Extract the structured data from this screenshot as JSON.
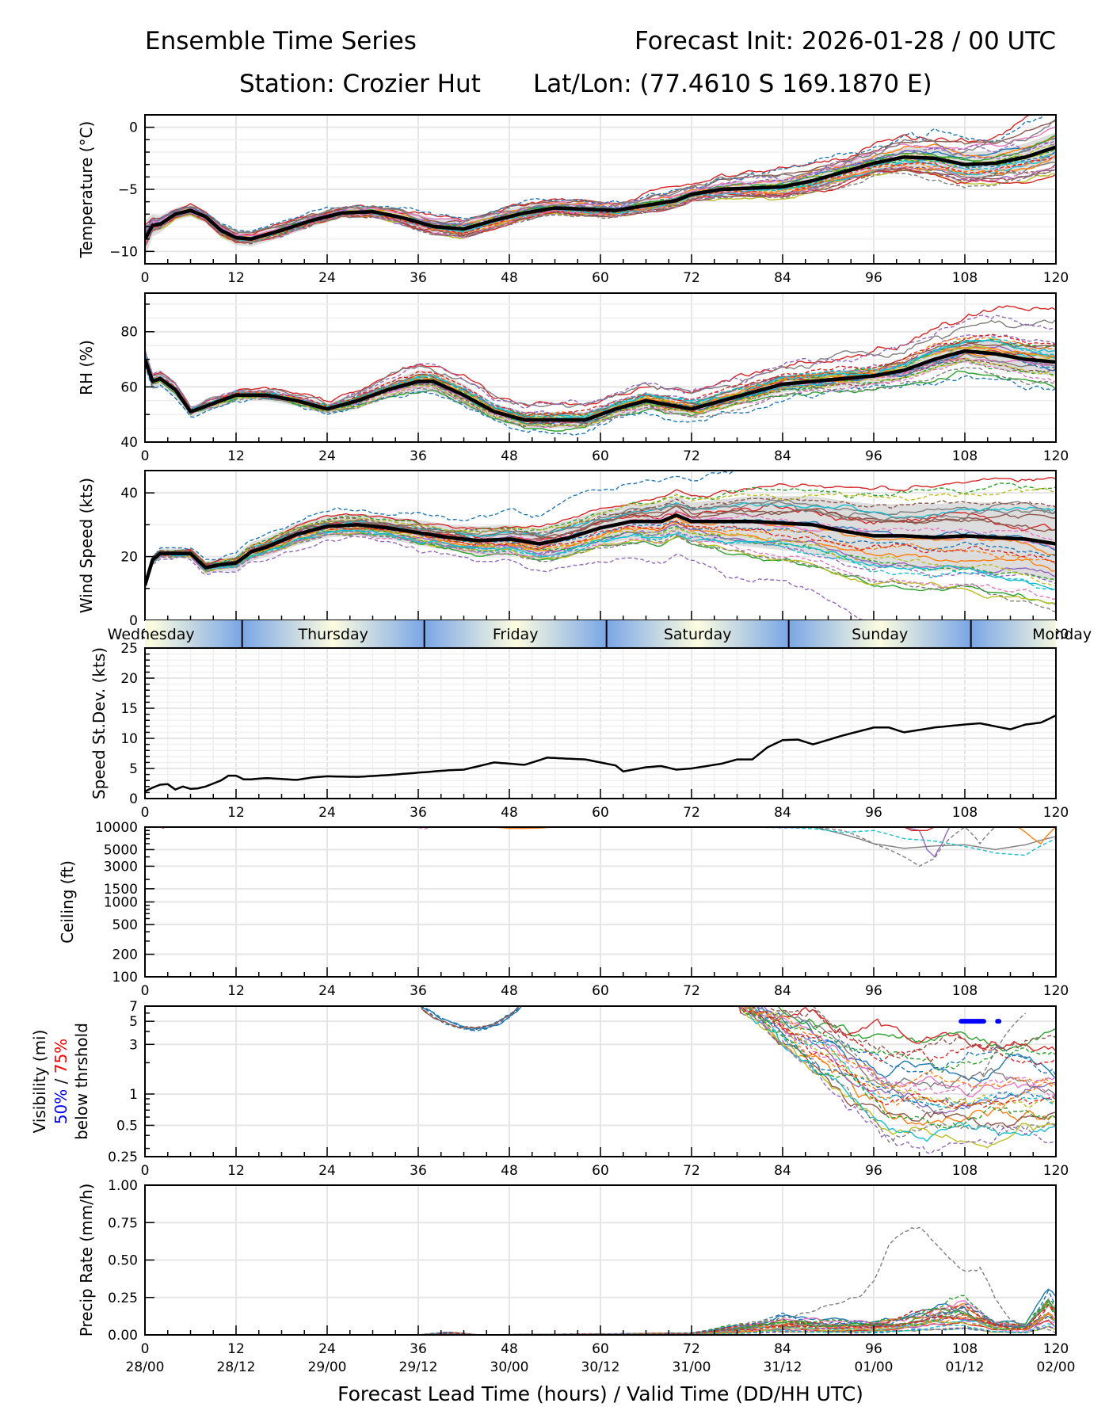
{
  "header": {
    "title_left": "Ensemble Time Series",
    "title_right": "Forecast Init: 2026-01-28 / 00 UTC",
    "station": "Station: Crozier Hut",
    "latlon": "Lat/Lon: (77.4610 S 169.1870 E)"
  },
  "x_axis": {
    "label": "Forecast Lead Time (hours) / Valid Time (DD/HH UTC)",
    "lead_ticks": [
      0,
      12,
      24,
      36,
      48,
      60,
      72,
      84,
      96,
      108,
      120
    ],
    "valid_labels": [
      "28/00",
      "28/12",
      "29/00",
      "29/12",
      "30/00",
      "30/12",
      "31/00",
      "31/12",
      "01/00",
      "01/12",
      "02/00"
    ],
    "range": [
      0,
      120
    ]
  },
  "day_band": {
    "days": [
      "Wednesday",
      "Thursday",
      "Friday",
      "Saturday",
      "Sunday",
      "Monday"
    ],
    "dividers_hours": [
      12.8,
      36.8,
      60.8,
      84.8,
      108.8
    ],
    "colors": {
      "midday": "#fdfde0",
      "midnight": "#7aa6e6"
    }
  },
  "colors": {
    "members": [
      "#1f77b4",
      "#ff7f0e",
      "#2ca02c",
      "#d62728",
      "#9467bd",
      "#8c564b",
      "#e377c2",
      "#7f7f7f",
      "#bcbd22",
      "#17becf"
    ],
    "mean": "#000000",
    "spread": "#d9d9d9",
    "grid": "#e6e6e6",
    "vis_50": "#0000ff",
    "vis_75": "#ff0000"
  },
  "chart_data": [
    {
      "id": "temperature",
      "type": "line",
      "ylabel": "Temperature (°C)",
      "ylim": [
        -11,
        1
      ],
      "yticks": [
        0,
        -5,
        -10
      ],
      "ytick_labels": [
        "0",
        "−5",
        "−10"
      ],
      "x": [
        0,
        1,
        2,
        4,
        6,
        8,
        10,
        12,
        14,
        18,
        22,
        26,
        30,
        34,
        38,
        42,
        46,
        50,
        54,
        58,
        62,
        66,
        70,
        72,
        76,
        80,
        84,
        88,
        92,
        96,
        100,
        104,
        108,
        112,
        116,
        120
      ],
      "mean": [
        -9.0,
        -7.9,
        -7.8,
        -7.0,
        -6.7,
        -7.2,
        -8.3,
        -8.9,
        -9.0,
        -8.3,
        -7.5,
        -6.9,
        -6.8,
        -7.3,
        -8.0,
        -8.2,
        -7.5,
        -6.9,
        -6.5,
        -6.6,
        -6.7,
        -6.3,
        -5.9,
        -5.4,
        -5.0,
        -4.9,
        -4.8,
        -4.3,
        -3.6,
        -2.9,
        -2.4,
        -2.5,
        -3.0,
        -2.9,
        -2.4,
        -1.6
      ],
      "spread": [
        1.5,
        0.9,
        0.7,
        0.5,
        0.5,
        0.5,
        0.6,
        0.6,
        0.6,
        0.6,
        0.5,
        0.4,
        0.5,
        0.6,
        0.7,
        0.8,
        0.7,
        0.6,
        0.5,
        0.5,
        0.5,
        0.5,
        0.5,
        0.4,
        0.5,
        0.6,
        0.7,
        0.7,
        0.7,
        0.7,
        0.8,
        0.9,
        1.0,
        1.0,
        1.1,
        1.2
      ]
    },
    {
      "id": "rh",
      "type": "line",
      "ylabel": "RH (%)",
      "ylim": [
        40,
        94
      ],
      "yticks": [
        40,
        60,
        80
      ],
      "ytick_labels": [
        "40",
        "60",
        "80"
      ],
      "x": [
        0,
        1,
        2,
        4,
        6,
        8,
        10,
        12,
        16,
        20,
        24,
        28,
        32,
        36,
        38,
        42,
        46,
        50,
        54,
        58,
        62,
        66,
        70,
        72,
        76,
        80,
        84,
        88,
        92,
        96,
        100,
        104,
        108,
        112,
        116,
        120
      ],
      "mean": [
        70,
        62,
        63,
        59,
        51,
        53,
        55,
        57,
        57,
        55,
        52,
        55,
        59,
        62,
        62,
        57,
        51,
        48,
        48,
        48,
        52,
        55,
        53,
        52,
        55,
        58,
        61,
        62,
        63,
        64,
        66,
        70,
        73,
        72,
        70,
        69
      ],
      "spread": [
        4,
        3,
        3,
        3,
        2,
        2,
        2,
        2,
        2,
        2,
        2,
        3,
        3,
        4,
        4,
        4,
        3,
        3,
        3,
        3,
        3,
        3,
        3,
        3,
        3,
        3,
        3,
        3,
        3,
        3,
        3,
        4,
        4,
        5,
        5,
        5
      ]
    },
    {
      "id": "wind_speed",
      "type": "line",
      "ylabel": "Wind Speed (kts)",
      "ylim": [
        0,
        47
      ],
      "yticks": [
        0,
        20,
        40
      ],
      "ytick_labels": [
        "0",
        "20",
        "40"
      ],
      "x": [
        0,
        1,
        2,
        4,
        6,
        8,
        10,
        12,
        14,
        16,
        20,
        24,
        28,
        32,
        36,
        40,
        44,
        48,
        52,
        56,
        60,
        64,
        68,
        70,
        72,
        76,
        80,
        84,
        88,
        92,
        96,
        100,
        104,
        108,
        112,
        116,
        120
      ],
      "mean": [
        11,
        19,
        21,
        21,
        21,
        16.5,
        17.5,
        18,
        21.5,
        23,
        27,
        29.5,
        30,
        29,
        27.5,
        26,
        25,
        25.5,
        24,
        26,
        29,
        31,
        31,
        33,
        31,
        31,
        31,
        30.5,
        30,
        28,
        26.5,
        26.5,
        26,
        26.5,
        26,
        25.5,
        24
      ],
      "spread": [
        1,
        1.5,
        1.5,
        1.5,
        1.5,
        2,
        2,
        2.5,
        3,
        3,
        3.5,
        3.5,
        3.5,
        3.5,
        4,
        4,
        4.5,
        4.5,
        5,
        5.5,
        5.5,
        5.5,
        6,
        6,
        6,
        7,
        8,
        8.5,
        9,
        9.5,
        10,
        10,
        10.5,
        10.5,
        11,
        11,
        12
      ]
    },
    {
      "id": "speed_stdev",
      "type": "line",
      "ylabel": "Speed St.Dev. (kts)",
      "ylim": [
        0,
        25
      ],
      "yticks": [
        0,
        5,
        10,
        15,
        20,
        25
      ],
      "ytick_labels": [
        "0",
        "5",
        "10",
        "15",
        "20",
        "25"
      ],
      "x": [
        0,
        1,
        2,
        3,
        4,
        5,
        6,
        7,
        8,
        10,
        11,
        12,
        13,
        14,
        16,
        20,
        22,
        24,
        28,
        32,
        36,
        40,
        42,
        46,
        48,
        50,
        53,
        56,
        58,
        60,
        62,
        63,
        66,
        68,
        70,
        72,
        76,
        78,
        80,
        82,
        84,
        86,
        88,
        92,
        96,
        98,
        100,
        104,
        108,
        110,
        112,
        114,
        116,
        118,
        120
      ],
      "values": [
        1.2,
        1.8,
        2.3,
        2.4,
        1.5,
        2.0,
        1.6,
        1.7,
        2.0,
        3.0,
        3.8,
        3.8,
        3.2,
        3.2,
        3.4,
        3.1,
        3.5,
        3.7,
        3.6,
        3.9,
        4.3,
        4.7,
        4.8,
        6.0,
        5.8,
        5.6,
        6.8,
        6.6,
        6.5,
        6.0,
        5.5,
        4.5,
        5.2,
        5.4,
        4.8,
        5.0,
        5.8,
        6.5,
        6.5,
        8.5,
        9.7,
        9.8,
        9.0,
        10.5,
        11.8,
        11.8,
        11.0,
        11.8,
        12.3,
        12.5,
        12.0,
        11.5,
        12.3,
        12.6,
        13.8
      ]
    },
    {
      "id": "ceiling",
      "type": "line",
      "ylabel": "Ceiling (ft)",
      "scale": "log",
      "ylim": [
        100,
        10000
      ],
      "yticks": [
        100,
        200,
        500,
        1000,
        1500,
        3000,
        5000,
        10000
      ],
      "ytick_labels": [
        "100",
        "200",
        "500",
        "1000",
        "1500",
        "3000",
        "5000",
        "10000"
      ],
      "notes": "Most members at or above 10000 ft; lowering to ~3000-6000 ft after hour 90"
    },
    {
      "id": "visibility",
      "type": "line",
      "ylabel": "Visibility (mi)",
      "ylabel2_blue": "50%",
      "ylabel2_sep": " / ",
      "ylabel2_red": "75%",
      "ylabel3": "below thrshold",
      "scale": "log",
      "ylim": [
        0.25,
        7
      ],
      "yticks": [
        0.25,
        0.5,
        1,
        3,
        5,
        7
      ],
      "ytick_labels": [
        "0.25",
        "0.5",
        "1",
        "3",
        "5",
        "7"
      ],
      "threshold_50pct_markers": [
        {
          "x_start": 107.5,
          "x_end": 110.5,
          "y": 5
        },
        {
          "x_start": 112.3,
          "x_end": 112.4,
          "y": 5
        }
      ]
    },
    {
      "id": "precip_rate",
      "type": "line",
      "ylabel": "Precip Rate (mm/h)",
      "ylim": [
        0,
        1.0
      ],
      "yticks": [
        0,
        0.25,
        0.5,
        0.75,
        1.0
      ],
      "ytick_labels": [
        "0.00",
        "0.25",
        "0.50",
        "0.75",
        "1.00"
      ],
      "outlier_member": {
        "x": [
          72,
          78,
          82,
          86,
          90,
          94,
          96,
          98,
          100,
          102,
          104,
          106,
          108,
          110,
          112,
          114,
          116,
          120
        ],
        "values": [
          0.0,
          0.05,
          0.1,
          0.15,
          0.2,
          0.26,
          0.35,
          0.6,
          0.68,
          0.72,
          0.62,
          0.5,
          0.42,
          0.45,
          0.25,
          0.1,
          0.05,
          0.03
        ]
      },
      "max_other_members": {
        "x": [
          0,
          36,
          40,
          44,
          72,
          78,
          84,
          90,
          96,
          100,
          104,
          108,
          112,
          116,
          119,
          120
        ],
        "values": [
          0.0,
          0.0,
          0.03,
          0.0,
          0.02,
          0.1,
          0.18,
          0.15,
          0.15,
          0.2,
          0.3,
          0.35,
          0.15,
          0.12,
          0.44,
          0.3
        ]
      }
    }
  ]
}
